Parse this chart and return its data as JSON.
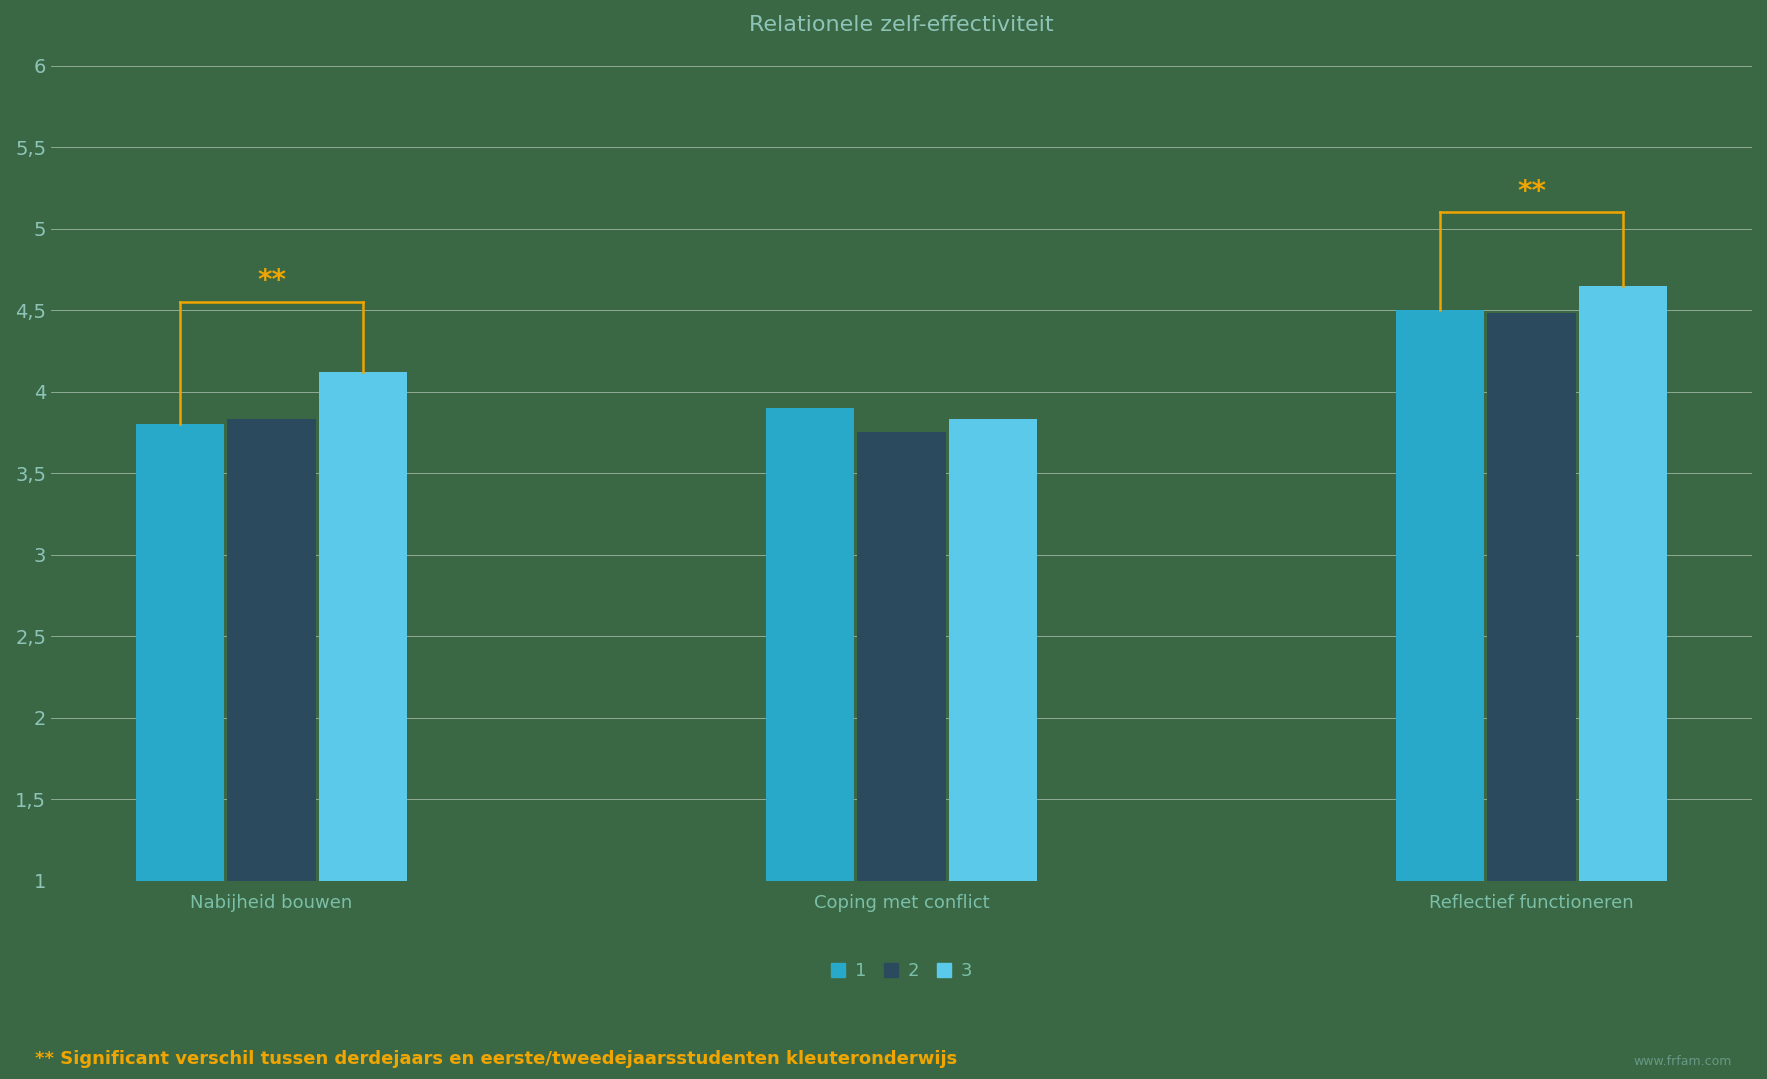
{
  "title": "Relationele zelf-effectiviteit",
  "groups": [
    "Nabijheid bouwen",
    "Coping met conflict",
    "Reflectief functioneren"
  ],
  "series_labels": [
    "1",
    "2",
    "3"
  ],
  "values": [
    [
      3.8,
      3.83,
      4.12
    ],
    [
      3.9,
      3.75,
      3.83
    ],
    [
      4.5,
      4.48,
      4.65
    ]
  ],
  "bar_colors": [
    "#29A9C9",
    "#2C4A5E",
    "#5AC9EA"
  ],
  "background_color": "#3A6845",
  "grid_color": "#FFFFFF",
  "text_color": "#8EC4B8",
  "title_color": "#8EC4B8",
  "axis_label_color": "#7BBFA8",
  "ylim": [
    1,
    6
  ],
  "yticks": [
    1,
    1.5,
    2,
    2.5,
    3,
    3.5,
    4,
    4.5,
    5,
    5.5,
    6
  ],
  "significance_color": "#F0A500",
  "footnote": "** Significant verschil tussen derdejaars en eerste/tweedejaarsstudenten kleuteronderwijs",
  "footnote_color": "#F0A500",
  "watermark": "www.frfam.com",
  "watermark_color": "#7BADA0"
}
